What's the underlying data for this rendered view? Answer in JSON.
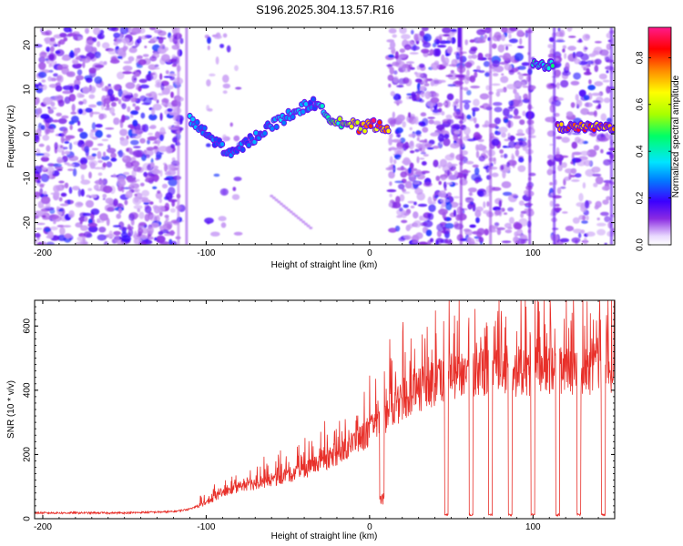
{
  "figure": {
    "title": "S196.2025.304.13.57.R16"
  },
  "chart_data": [
    {
      "type": "heatmap",
      "title": "S196.2025.304.13.57.R16",
      "xlabel": "Height of straight line (km)",
      "ylabel": "Frequency (Hz)",
      "xlim": [
        -205,
        150
      ],
      "ylim": [
        -25,
        24
      ],
      "x_ticks": [
        -200,
        -100,
        0,
        100
      ],
      "x_tick_labels": [
        "-200",
        "-100",
        "0",
        "100"
      ],
      "y_ticks": [
        -20,
        -10,
        0,
        10,
        20
      ],
      "y_tick_labels": [
        "-20",
        "-10",
        "0",
        "10",
        "20"
      ],
      "colorbar": {
        "label": "Normalized spectral amplitude",
        "range": [
          0,
          0.93
        ],
        "ticks": [
          0.0,
          0.2,
          0.4,
          0.6,
          0.8
        ],
        "tick_labels": [
          "0.0",
          "0.2",
          "0.4",
          "0.6",
          "0.8"
        ],
        "colormap": [
          "#e9d9ff",
          "#8a2be2",
          "#3a00ff",
          "#0080ff",
          "#00e5ff",
          "#00ff66",
          "#a8ff00",
          "#ffff00",
          "#ff8c00",
          "#ff0000",
          "#ff1a8c"
        ]
      },
      "signal_track": {
        "description": "dominant frequency ridge vs height",
        "x": [
          -110,
          -100,
          -90,
          -85,
          -75,
          -60,
          -50,
          -40,
          -35,
          -25,
          -20,
          -10,
          -5,
          0,
          5,
          12
        ],
        "y": [
          3,
          0,
          -3,
          -5,
          -2,
          2,
          4,
          6,
          7,
          4,
          3,
          2,
          1,
          2,
          2,
          1.5
        ],
        "strength": [
          0.35,
          0.3,
          0.3,
          0.3,
          0.3,
          0.35,
          0.4,
          0.35,
          0.3,
          0.5,
          0.55,
          0.7,
          0.85,
          0.9,
          0.9,
          0.8
        ]
      },
      "right_segments": [
        {
          "x": [
            100,
            112
          ],
          "y": 15.5,
          "strength": 0.45
        },
        {
          "x": [
            115,
            150
          ],
          "y": 1.5,
          "strength": 0.85
        }
      ]
    },
    {
      "type": "line",
      "xlabel": "Height of straight line (km)",
      "ylabel": "SNR (10 * v/v)",
      "xlim": [
        -205,
        150
      ],
      "ylim": [
        0,
        680
      ],
      "x_ticks": [
        -200,
        -100,
        0,
        100
      ],
      "x_tick_labels": [
        "-200",
        "-100",
        "0",
        "100"
      ],
      "y_ticks": [
        0,
        200,
        400,
        600
      ],
      "y_tick_labels": [
        "0",
        "200",
        "400",
        "600"
      ],
      "series": [
        {
          "name": "SNR",
          "color": "#e8302a",
          "trend_x": [
            -205,
            -150,
            -120,
            -110,
            -100,
            -90,
            -80,
            -60,
            -40,
            -20,
            0,
            10,
            20,
            30,
            40,
            50,
            60,
            80,
            100,
            120,
            150
          ],
          "trend_y": [
            18,
            18,
            22,
            30,
            50,
            80,
            100,
            120,
            150,
            200,
            270,
            320,
            370,
            400,
            420,
            440,
            450,
            460,
            460,
            460,
            470
          ],
          "dropouts_x": [
            47,
            62,
            74,
            86,
            100,
            115,
            128,
            143
          ]
        }
      ]
    }
  ]
}
